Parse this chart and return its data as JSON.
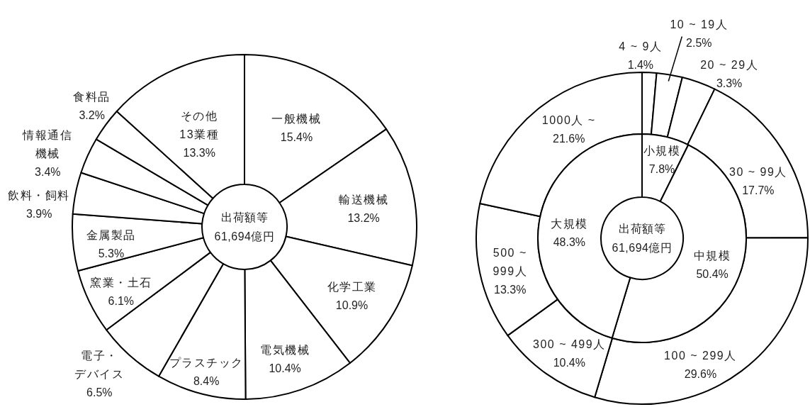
{
  "chart_data": [
    {
      "type": "donut",
      "categories": [
        "一般機械",
        "輸送機械",
        "化学工業",
        "電気機械",
        "プラスチック",
        "電子・デバイス",
        "窯業・土石",
        "金属製品",
        "飲料・飼料",
        "情報通信機械",
        "食料品",
        "その他13業種"
      ],
      "values": [
        15.4,
        13.2,
        10.9,
        10.4,
        8.4,
        6.5,
        6.1,
        5.3,
        3.9,
        3.4,
        3.2,
        13.3
      ],
      "colors": [
        "#ffffff",
        "#ffffff",
        "#ffffff",
        "#ffffff",
        "#ffffff",
        "#ffffff",
        "#ffffff",
        "#ffffff",
        "#ffffff",
        "#ffffff",
        "#ffffff",
        "#ffffff"
      ],
      "value_labels": [
        "15.4%",
        "13.2%",
        "10.9%",
        "10.4%",
        "8.4%",
        "6.5%",
        "6.1%",
        "5.3%",
        "3.9%",
        "3.4%",
        "3.2%",
        "13.3%"
      ],
      "annotations": [
        "出荷額等",
        "61,694億円"
      ]
    },
    {
      "type": "donut",
      "categories": [
        "4 ~ 9人",
        "10 ~ 19人",
        "20 ~ 29人",
        "30 ~ 99人",
        "100 ~ 299人",
        "300 ~ 499人",
        "500 ~ 999人",
        "1000人 ~"
      ],
      "values": [
        1.4,
        2.5,
        3.3,
        17.7,
        29.6,
        10.4,
        13.3,
        21.6
      ],
      "colors": [
        "#ffffff",
        "#ffffff",
        "#ffffff",
        "#ffffff",
        "#ffffff",
        "#ffffff",
        "#ffffff",
        "#ffffff"
      ],
      "value_labels": [
        "1.4%",
        "2.5%",
        "3.3%",
        "17.7%",
        "29.6%",
        "10.4%",
        "13.3%",
        "21.6%"
      ]
    },
    {
      "type": "donut",
      "categories": [
        "小規模",
        "中規模",
        "大規模"
      ],
      "values": [
        7.8,
        50.4,
        48.3
      ],
      "colors": [
        "#ffffff",
        "#ffffff",
        "#ffffff"
      ],
      "value_labels": [
        "7.8%",
        "50.4%",
        "48.3%"
      ],
      "annotations": [
        "出荷額等",
        "61,694億円"
      ]
    }
  ]
}
